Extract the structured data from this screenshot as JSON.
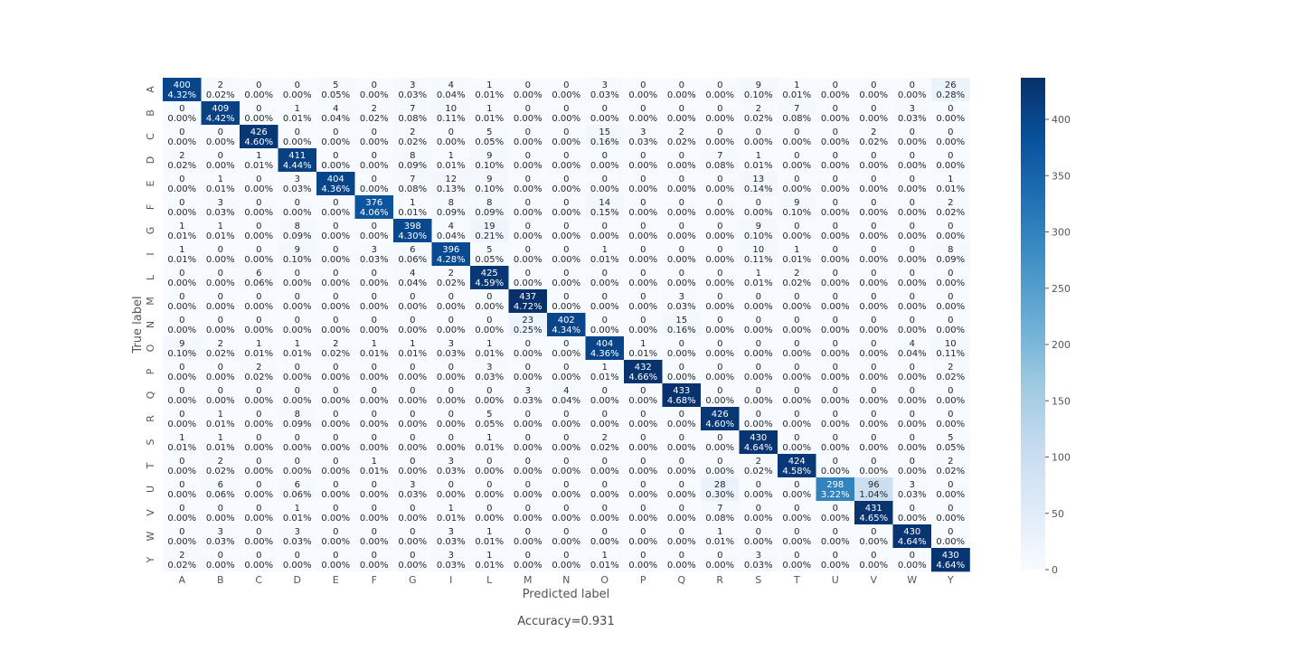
{
  "chart_data": {
    "type": "heatmap",
    "title": "",
    "xlabel": "Predicted label",
    "ylabel": "True label",
    "x_categories": [
      "A",
      "B",
      "C",
      "D",
      "E",
      "F",
      "G",
      "I",
      "L",
      "M",
      "N",
      "O",
      "P",
      "Q",
      "R",
      "S",
      "T",
      "U",
      "V",
      "W",
      "Y"
    ],
    "y_categories": [
      "A",
      "B",
      "C",
      "D",
      "E",
      "F",
      "G",
      "I",
      "L",
      "M",
      "N",
      "O",
      "P",
      "Q",
      "R",
      "S",
      "T",
      "U",
      "V",
      "W",
      "Y"
    ],
    "colormap": "Blues",
    "color_low": "#f7fbff",
    "color_high": "#08306b",
    "vmin": 0,
    "vmax": 437,
    "colorbar_ticks": [
      0,
      50,
      100,
      150,
      200,
      250,
      300,
      350,
      400
    ],
    "counts": [
      [
        400,
        2,
        0,
        0,
        5,
        0,
        3,
        4,
        1,
        0,
        0,
        3,
        0,
        0,
        0,
        9,
        1,
        0,
        0,
        0,
        26
      ],
      [
        0,
        409,
        0,
        1,
        4,
        2,
        7,
        10,
        1,
        0,
        0,
        0,
        0,
        0,
        0,
        2,
        7,
        0,
        0,
        3,
        0
      ],
      [
        0,
        0,
        426,
        0,
        0,
        0,
        2,
        0,
        5,
        0,
        0,
        15,
        3,
        2,
        0,
        0,
        0,
        0,
        2,
        0,
        0
      ],
      [
        2,
        0,
        1,
        411,
        0,
        0,
        8,
        1,
        9,
        0,
        0,
        0,
        0,
        0,
        7,
        1,
        0,
        0,
        0,
        0,
        0
      ],
      [
        0,
        1,
        0,
        3,
        404,
        0,
        7,
        12,
        9,
        0,
        0,
        0,
        0,
        0,
        0,
        13,
        0,
        0,
        0,
        0,
        1
      ],
      [
        0,
        3,
        0,
        0,
        0,
        376,
        1,
        8,
        8,
        0,
        0,
        14,
        0,
        0,
        0,
        0,
        9,
        0,
        0,
        0,
        2
      ],
      [
        1,
        1,
        0,
        8,
        0,
        0,
        398,
        4,
        19,
        0,
        0,
        0,
        0,
        0,
        0,
        9,
        0,
        0,
        0,
        0,
        0
      ],
      [
        1,
        0,
        0,
        9,
        0,
        3,
        6,
        396,
        5,
        0,
        0,
        1,
        0,
        0,
        0,
        10,
        1,
        0,
        0,
        0,
        8
      ],
      [
        0,
        0,
        6,
        0,
        0,
        0,
        4,
        2,
        425,
        0,
        0,
        0,
        0,
        0,
        0,
        1,
        2,
        0,
        0,
        0,
        0
      ],
      [
        0,
        0,
        0,
        0,
        0,
        0,
        0,
        0,
        0,
        437,
        0,
        0,
        0,
        3,
        0,
        0,
        0,
        0,
        0,
        0,
        0
      ],
      [
        0,
        0,
        0,
        0,
        0,
        0,
        0,
        0,
        0,
        23,
        402,
        0,
        0,
        15,
        0,
        0,
        0,
        0,
        0,
        0,
        0
      ],
      [
        9,
        2,
        1,
        1,
        2,
        1,
        1,
        3,
        1,
        0,
        0,
        404,
        1,
        0,
        0,
        0,
        0,
        0,
        0,
        4,
        10
      ],
      [
        0,
        0,
        2,
        0,
        0,
        0,
        0,
        0,
        3,
        0,
        0,
        1,
        432,
        0,
        0,
        0,
        0,
        0,
        0,
        0,
        2
      ],
      [
        0,
        0,
        0,
        0,
        0,
        0,
        0,
        0,
        0,
        3,
        4,
        0,
        0,
        433,
        0,
        0,
        0,
        0,
        0,
        0,
        0
      ],
      [
        0,
        1,
        0,
        8,
        0,
        0,
        0,
        0,
        5,
        0,
        0,
        0,
        0,
        0,
        426,
        0,
        0,
        0,
        0,
        0,
        0
      ],
      [
        1,
        1,
        0,
        0,
        0,
        0,
        0,
        0,
        1,
        0,
        0,
        2,
        0,
        0,
        0,
        430,
        0,
        0,
        0,
        0,
        5
      ],
      [
        0,
        2,
        0,
        0,
        0,
        1,
        0,
        3,
        0,
        0,
        0,
        0,
        0,
        0,
        0,
        2,
        424,
        0,
        0,
        0,
        2
      ],
      [
        0,
        6,
        0,
        6,
        0,
        0,
        3,
        0,
        0,
        0,
        0,
        0,
        0,
        0,
        28,
        0,
        0,
        298,
        96,
        3,
        0
      ],
      [
        0,
        0,
        0,
        1,
        0,
        0,
        0,
        1,
        0,
        0,
        0,
        0,
        0,
        0,
        7,
        0,
        0,
        0,
        431,
        0,
        0
      ],
      [
        0,
        3,
        0,
        3,
        0,
        0,
        0,
        3,
        1,
        0,
        0,
        0,
        0,
        0,
        1,
        0,
        0,
        0,
        0,
        430,
        0
      ],
      [
        2,
        0,
        0,
        0,
        0,
        0,
        0,
        3,
        1,
        0,
        0,
        1,
        0,
        0,
        0,
        3,
        0,
        0,
        0,
        0,
        430
      ]
    ],
    "percents": [
      [
        "4.32%",
        "0.02%",
        "0.00%",
        "0.00%",
        "0.05%",
        "0.00%",
        "0.03%",
        "0.04%",
        "0.01%",
        "0.00%",
        "0.00%",
        "0.03%",
        "0.00%",
        "0.00%",
        "0.00%",
        "0.10%",
        "0.01%",
        "0.00%",
        "0.00%",
        "0.00%",
        "0.28%"
      ],
      [
        "0.00%",
        "4.42%",
        "0.00%",
        "0.01%",
        "0.04%",
        "0.02%",
        "0.08%",
        "0.11%",
        "0.01%",
        "0.00%",
        "0.00%",
        "0.00%",
        "0.00%",
        "0.00%",
        "0.00%",
        "0.02%",
        "0.08%",
        "0.00%",
        "0.00%",
        "0.03%",
        "0.00%"
      ],
      [
        "0.00%",
        "0.00%",
        "4.60%",
        "0.00%",
        "0.00%",
        "0.00%",
        "0.02%",
        "0.00%",
        "0.05%",
        "0.00%",
        "0.00%",
        "0.16%",
        "0.03%",
        "0.02%",
        "0.00%",
        "0.00%",
        "0.00%",
        "0.00%",
        "0.02%",
        "0.00%",
        "0.00%"
      ],
      [
        "0.02%",
        "0.00%",
        "0.01%",
        "4.44%",
        "0.00%",
        "0.00%",
        "0.09%",
        "0.01%",
        "0.10%",
        "0.00%",
        "0.00%",
        "0.00%",
        "0.00%",
        "0.00%",
        "0.08%",
        "0.01%",
        "0.00%",
        "0.00%",
        "0.00%",
        "0.00%",
        "0.00%"
      ],
      [
        "0.00%",
        "0.01%",
        "0.00%",
        "0.03%",
        "4.36%",
        "0.00%",
        "0.08%",
        "0.13%",
        "0.10%",
        "0.00%",
        "0.00%",
        "0.00%",
        "0.00%",
        "0.00%",
        "0.00%",
        "0.14%",
        "0.00%",
        "0.00%",
        "0.00%",
        "0.00%",
        "0.01%"
      ],
      [
        "0.00%",
        "0.03%",
        "0.00%",
        "0.00%",
        "0.00%",
        "4.06%",
        "0.01%",
        "0.09%",
        "0.09%",
        "0.00%",
        "0.00%",
        "0.15%",
        "0.00%",
        "0.00%",
        "0.00%",
        "0.00%",
        "0.10%",
        "0.00%",
        "0.00%",
        "0.00%",
        "0.02%"
      ],
      [
        "0.01%",
        "0.01%",
        "0.00%",
        "0.09%",
        "0.00%",
        "0.00%",
        "4.30%",
        "0.04%",
        "0.21%",
        "0.00%",
        "0.00%",
        "0.00%",
        "0.00%",
        "0.00%",
        "0.00%",
        "0.10%",
        "0.00%",
        "0.00%",
        "0.00%",
        "0.00%",
        "0.00%"
      ],
      [
        "0.01%",
        "0.00%",
        "0.00%",
        "0.10%",
        "0.00%",
        "0.03%",
        "0.06%",
        "4.28%",
        "0.05%",
        "0.00%",
        "0.00%",
        "0.01%",
        "0.00%",
        "0.00%",
        "0.00%",
        "0.11%",
        "0.01%",
        "0.00%",
        "0.00%",
        "0.00%",
        "0.09%"
      ],
      [
        "0.00%",
        "0.00%",
        "0.06%",
        "0.00%",
        "0.00%",
        "0.00%",
        "0.04%",
        "0.02%",
        "4.59%",
        "0.00%",
        "0.00%",
        "0.00%",
        "0.00%",
        "0.00%",
        "0.00%",
        "0.01%",
        "0.02%",
        "0.00%",
        "0.00%",
        "0.00%",
        "0.00%"
      ],
      [
        "0.00%",
        "0.00%",
        "0.00%",
        "0.00%",
        "0.00%",
        "0.00%",
        "0.00%",
        "0.00%",
        "0.00%",
        "4.72%",
        "0.00%",
        "0.00%",
        "0.00%",
        "0.03%",
        "0.00%",
        "0.00%",
        "0.00%",
        "0.00%",
        "0.00%",
        "0.00%",
        "0.00%"
      ],
      [
        "0.00%",
        "0.00%",
        "0.00%",
        "0.00%",
        "0.00%",
        "0.00%",
        "0.00%",
        "0.00%",
        "0.00%",
        "0.25%",
        "4.34%",
        "0.00%",
        "0.00%",
        "0.16%",
        "0.00%",
        "0.00%",
        "0.00%",
        "0.00%",
        "0.00%",
        "0.00%",
        "0.00%"
      ],
      [
        "0.10%",
        "0.02%",
        "0.01%",
        "0.01%",
        "0.02%",
        "0.01%",
        "0.01%",
        "0.03%",
        "0.01%",
        "0.00%",
        "0.00%",
        "4.36%",
        "0.01%",
        "0.00%",
        "0.00%",
        "0.00%",
        "0.00%",
        "0.00%",
        "0.00%",
        "0.04%",
        "0.11%"
      ],
      [
        "0.00%",
        "0.00%",
        "0.02%",
        "0.00%",
        "0.00%",
        "0.00%",
        "0.00%",
        "0.00%",
        "0.03%",
        "0.00%",
        "0.00%",
        "0.01%",
        "4.66%",
        "0.00%",
        "0.00%",
        "0.00%",
        "0.00%",
        "0.00%",
        "0.00%",
        "0.00%",
        "0.02%"
      ],
      [
        "0.00%",
        "0.00%",
        "0.00%",
        "0.00%",
        "0.00%",
        "0.00%",
        "0.00%",
        "0.00%",
        "0.00%",
        "0.03%",
        "0.04%",
        "0.00%",
        "0.00%",
        "4.68%",
        "0.00%",
        "0.00%",
        "0.00%",
        "0.00%",
        "0.00%",
        "0.00%",
        "0.00%"
      ],
      [
        "0.00%",
        "0.01%",
        "0.00%",
        "0.09%",
        "0.00%",
        "0.00%",
        "0.00%",
        "0.00%",
        "0.05%",
        "0.00%",
        "0.00%",
        "0.00%",
        "0.00%",
        "0.00%",
        "4.60%",
        "0.00%",
        "0.00%",
        "0.00%",
        "0.00%",
        "0.00%",
        "0.00%"
      ],
      [
        "0.01%",
        "0.01%",
        "0.00%",
        "0.00%",
        "0.00%",
        "0.00%",
        "0.00%",
        "0.00%",
        "0.01%",
        "0.00%",
        "0.00%",
        "0.02%",
        "0.00%",
        "0.00%",
        "0.00%",
        "4.64%",
        "0.00%",
        "0.00%",
        "0.00%",
        "0.00%",
        "0.05%"
      ],
      [
        "0.00%",
        "0.02%",
        "0.00%",
        "0.00%",
        "0.00%",
        "0.01%",
        "0.00%",
        "0.03%",
        "0.00%",
        "0.00%",
        "0.00%",
        "0.00%",
        "0.00%",
        "0.00%",
        "0.00%",
        "0.02%",
        "4.58%",
        "0.00%",
        "0.00%",
        "0.00%",
        "0.02%"
      ],
      [
        "0.00%",
        "0.06%",
        "0.00%",
        "0.06%",
        "0.00%",
        "0.00%",
        "0.03%",
        "0.00%",
        "0.00%",
        "0.00%",
        "0.00%",
        "0.00%",
        "0.00%",
        "0.00%",
        "0.30%",
        "0.00%",
        "0.00%",
        "3.22%",
        "1.04%",
        "0.03%",
        "0.00%"
      ],
      [
        "0.00%",
        "0.00%",
        "0.00%",
        "0.01%",
        "0.00%",
        "0.00%",
        "0.00%",
        "0.01%",
        "0.00%",
        "0.00%",
        "0.00%",
        "0.00%",
        "0.00%",
        "0.00%",
        "0.08%",
        "0.00%",
        "0.00%",
        "0.00%",
        "4.65%",
        "0.00%",
        "0.00%"
      ],
      [
        "0.00%",
        "0.03%",
        "0.00%",
        "0.03%",
        "0.00%",
        "0.00%",
        "0.00%",
        "0.03%",
        "0.01%",
        "0.00%",
        "0.00%",
        "0.00%",
        "0.00%",
        "0.00%",
        "0.01%",
        "0.00%",
        "0.00%",
        "0.00%",
        "0.00%",
        "4.64%",
        "0.00%"
      ],
      [
        "0.02%",
        "0.00%",
        "0.00%",
        "0.00%",
        "0.00%",
        "0.00%",
        "0.00%",
        "0.03%",
        "0.01%",
        "0.00%",
        "0.00%",
        "0.01%",
        "0.00%",
        "0.00%",
        "0.00%",
        "0.03%",
        "0.00%",
        "0.00%",
        "0.00%",
        "0.00%",
        "4.64%"
      ]
    ],
    "footer_text": "Accuracy=0.931"
  }
}
